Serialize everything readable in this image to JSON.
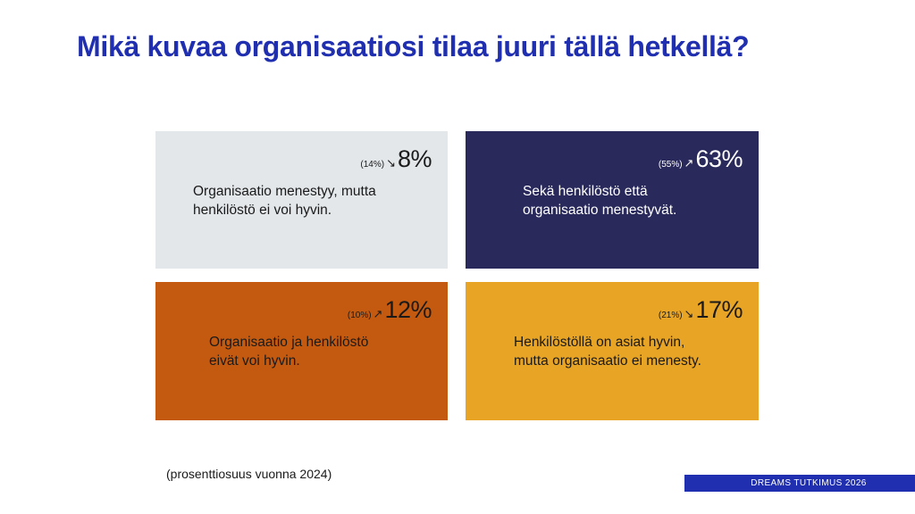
{
  "title": "Mikä kuvaa organisaatiosi tilaa juuri tällä hetkellä?",
  "footnote": "(prosenttiosuus vuonna 2024)",
  "brand": "DREAMS TUTKIMUS 2026",
  "chart_data": {
    "type": "table",
    "title": "Mikä kuvaa organisaatiosi tilaa juuri tällä hetkellä?",
    "cells": [
      {
        "label_line1": "Organisaatio menestyy, mutta",
        "label_line2": "henkilöstö ei voi hyvin.",
        "value": 8,
        "value_label": "8%",
        "previous_value": 14,
        "previous_label": "(14%)",
        "trend": "down",
        "trend_symbol": "↘",
        "color": "#e3e7ea",
        "text_color": "#1a1a1a"
      },
      {
        "label_line1": "Sekä henkilöstö että",
        "label_line2": "organisaatio menestyvät.",
        "value": 63,
        "value_label": "63%",
        "previous_value": 55,
        "previous_label": "(55%)",
        "trend": "up",
        "trend_symbol": "↗",
        "color": "#29295c",
        "text_color": "#ffffff"
      },
      {
        "label_line1": "Organisaatio ja henkilöstö",
        "label_line2": "eivät voi hyvin.",
        "value": 12,
        "value_label": "12%",
        "previous_value": 10,
        "previous_label": "(10%)",
        "trend": "up",
        "trend_symbol": "↗",
        "color": "#c45a10",
        "text_color": "#1a1a1a"
      },
      {
        "label_line1": "Henkilöstöllä on asiat hyvin,",
        "label_line2": "mutta organisaatio ei menesty.",
        "value": 17,
        "value_label": "17%",
        "previous_value": 21,
        "previous_label": "(21%)",
        "trend": "down",
        "trend_symbol": "↘",
        "color": "#e8a425",
        "text_color": "#1a1a1a"
      }
    ]
  }
}
